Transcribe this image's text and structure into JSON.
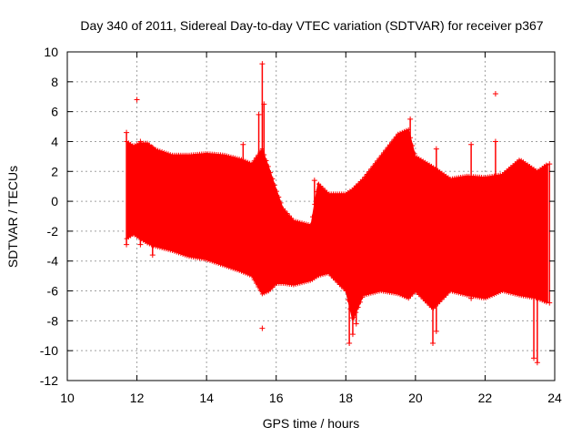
{
  "chart_data": {
    "type": "scatter",
    "title": "Day 340 of 2011, Sidereal Day-to-day VTEC variation (SDTVAR) for receiver p367",
    "xlabel": "GPS time / hours",
    "ylabel": "SDTVAR / TECUs",
    "xlim": [
      10,
      24
    ],
    "ylim": [
      -12,
      10
    ],
    "xticks": [
      10,
      12,
      14,
      16,
      18,
      20,
      22,
      24
    ],
    "yticks": [
      -12,
      -10,
      -8,
      -6,
      -4,
      -2,
      0,
      2,
      4,
      6,
      8,
      10
    ],
    "xtick_labels": [
      "10",
      "12",
      "14",
      "16",
      "18",
      "20",
      "22",
      "24"
    ],
    "ytick_labels": [
      "-12",
      "-10",
      "-8",
      "-6",
      "-4",
      "-2",
      "0",
      "2",
      "4",
      "6",
      "8",
      "10"
    ],
    "grid": true,
    "series": [
      {
        "name": "SDTVAR",
        "color": "#ff0000",
        "marker": "plus",
        "envelope": {
          "x": [
            11.7,
            11.9,
            12.1,
            12.3,
            12.5,
            13.0,
            13.5,
            14.0,
            14.5,
            15.0,
            15.3,
            15.6,
            15.8,
            16.0,
            16.2,
            16.5,
            17.0,
            17.2,
            17.5,
            18.0,
            18.2,
            18.5,
            19.0,
            19.5,
            19.8,
            20.0,
            20.5,
            21.0,
            21.5,
            22.0,
            22.5,
            23.0,
            23.5,
            23.8
          ],
          "upper": [
            4.0,
            3.7,
            3.9,
            3.9,
            3.5,
            3.1,
            3.1,
            3.2,
            3.1,
            2.8,
            2.5,
            3.5,
            2.2,
            0.8,
            -0.5,
            -1.3,
            -1.6,
            1.2,
            0.5,
            0.5,
            0.8,
            1.5,
            3.0,
            4.5,
            4.8,
            3.0,
            2.3,
            1.5,
            1.7,
            1.6,
            1.8,
            2.8,
            2.0,
            2.5
          ],
          "lower": [
            -2.5,
            -2.2,
            -2.5,
            -2.8,
            -3.0,
            -3.3,
            -3.7,
            -3.9,
            -4.3,
            -4.7,
            -5.0,
            -6.2,
            -6.0,
            -5.5,
            -5.5,
            -5.6,
            -5.3,
            -5.0,
            -4.8,
            -6.0,
            -8.0,
            -6.3,
            -6.0,
            -6.2,
            -6.5,
            -6.0,
            -7.2,
            -6.0,
            -6.3,
            -6.5,
            -6.0,
            -6.3,
            -6.5,
            -6.8
          ]
        },
        "spikes": [
          {
            "x": 11.7,
            "y_min": -2.9,
            "y_max": 4.6
          },
          {
            "x": 12.1,
            "y_min": -2.9,
            "y_max": 4.0
          },
          {
            "x": 12.45,
            "y_min": -3.6,
            "y_max": 3.6
          },
          {
            "x": 15.05,
            "y_min": -4.2,
            "y_max": 3.8
          },
          {
            "x": 15.5,
            "y_min": -4.5,
            "y_max": 5.8
          },
          {
            "x": 15.6,
            "y_min": -6.0,
            "y_max": 9.2
          },
          {
            "x": 15.65,
            "y_min": -5.5,
            "y_max": 6.5
          },
          {
            "x": 17.1,
            "y_min": -5.0,
            "y_max": 1.4
          },
          {
            "x": 18.1,
            "y_min": -9.5,
            "y_max": 0.2
          },
          {
            "x": 18.2,
            "y_min": -8.9,
            "y_max": 0.5
          },
          {
            "x": 18.3,
            "y_min": -8.2,
            "y_max": 1.0
          },
          {
            "x": 19.85,
            "y_min": -6.0,
            "y_max": 5.5
          },
          {
            "x": 20.5,
            "y_min": -9.5,
            "y_max": 1.5
          },
          {
            "x": 20.6,
            "y_min": -8.7,
            "y_max": 3.5
          },
          {
            "x": 21.6,
            "y_min": -6.5,
            "y_max": 3.8
          },
          {
            "x": 22.3,
            "y_min": -5.5,
            "y_max": 4.0
          },
          {
            "x": 23.4,
            "y_min": -10.5,
            "y_max": 2.0
          },
          {
            "x": 23.5,
            "y_min": -10.8,
            "y_max": 1.5
          },
          {
            "x": 23.85,
            "y_min": -6.8,
            "y_max": 2.5
          }
        ],
        "outliers": [
          {
            "x": 12.0,
            "y": 6.8
          },
          {
            "x": 15.6,
            "y": -8.5
          },
          {
            "x": 22.3,
            "y": 7.2
          }
        ]
      }
    ]
  }
}
